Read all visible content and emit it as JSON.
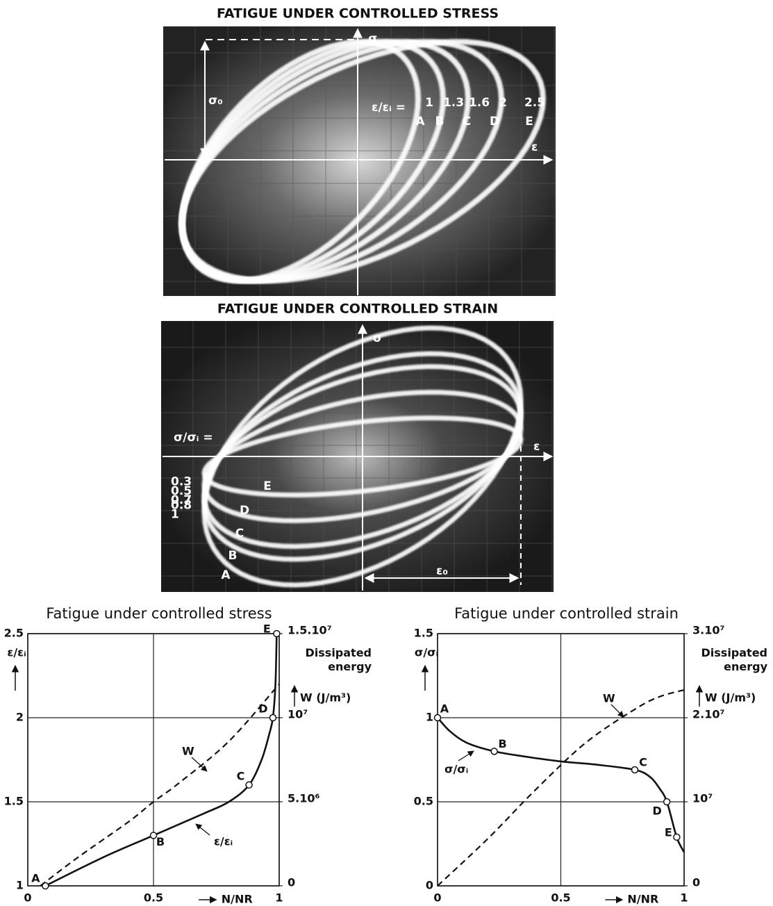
{
  "photos": [
    {
      "title": "FATIGUE UNDER CONTROLLED STRESS",
      "y_label": "σ",
      "x_label": "ε",
      "amplitude_label": "σ₀",
      "ratio_label": "ε/εᵢ =",
      "ratios": [
        1,
        1.3,
        1.6,
        2,
        2.5
      ],
      "loop_labels": [
        "A",
        "B",
        "C",
        "D",
        "E"
      ]
    },
    {
      "title": "FATIGUE UNDER CONTROLLED STRAIN",
      "y_label": "σ",
      "x_label": "ε",
      "amplitude_label": "ε₀",
      "ratio_label": "σ/σᵢ =",
      "ratios": [
        0.3,
        0.5,
        0.7,
        0.8,
        1
      ],
      "loop_labels": [
        "E",
        "D",
        "C",
        "B",
        "A"
      ]
    }
  ],
  "chart_data": [
    {
      "type": "line",
      "title": "Fatigue under controlled stress",
      "xlabel": "N/NR",
      "ylabel": "ε/εᵢ",
      "y2label": "Dissipated energy",
      "y2unit": "W (J/m³)",
      "xlim": [
        0,
        1
      ],
      "xticks": [
        0,
        0.5,
        1
      ],
      "ylim": [
        1,
        2.5
      ],
      "yticks": [
        1,
        1.5,
        2,
        2.5
      ],
      "y2lim": [
        0,
        15000000
      ],
      "y2ticks": [
        0,
        {
          "value": 5000000,
          "label": "5.10⁶"
        },
        {
          "value": 10000000,
          "label": "10⁷"
        },
        {
          "value": 15000000,
          "label": "1.5.10⁷"
        }
      ],
      "grid": true,
      "series": [
        {
          "name": "ε/εᵢ",
          "color": "#111111",
          "style": "solid",
          "x": [
            0.07,
            0.3,
            0.5,
            0.7,
            0.8,
            0.88,
            0.93,
            0.96,
            0.975,
            0.985,
            0.99
          ],
          "values": [
            1,
            1.17,
            1.3,
            1.43,
            1.5,
            1.6,
            1.75,
            1.9,
            2,
            2.2,
            2.5
          ],
          "point_labels": [
            "A",
            null,
            "B",
            null,
            null,
            "C",
            null,
            null,
            "D",
            null,
            "E"
          ]
        },
        {
          "name": "W",
          "color": "#111111",
          "style": "dashed",
          "axis": "y2",
          "x": [
            0.05,
            0.2,
            0.4,
            0.5,
            0.6,
            0.8,
            1
          ],
          "values": [
            0,
            1700000,
            3800000,
            5000000,
            6100000,
            8600000,
            12000000
          ]
        }
      ]
    },
    {
      "type": "line",
      "title": "Fatigue under controlled strain",
      "xlabel": "N/NR",
      "ylabel": "σ/σᵢ",
      "y2label": "Dissipated energy",
      "y2unit": "W (J/m³)",
      "xlim": [
        0,
        1
      ],
      "xticks": [
        0,
        0.5,
        1
      ],
      "ylim": [
        0,
        1.5
      ],
      "yticks": [
        0,
        0.5,
        1,
        1.5
      ],
      "y2lim": [
        0,
        30000000
      ],
      "y2ticks": [
        0,
        {
          "value": 10000000,
          "label": "10⁷"
        },
        {
          "value": 20000000,
          "label": "2.10⁷"
        },
        {
          "value": 30000000,
          "label": "3.10⁷"
        }
      ],
      "grid": true,
      "series": [
        {
          "name": "σ/σᵢ",
          "color": "#111111",
          "style": "solid",
          "x": [
            0,
            0.05,
            0.12,
            0.23,
            0.35,
            0.5,
            0.65,
            0.8,
            0.86,
            0.9,
            0.93,
            0.97,
            1
          ],
          "values": [
            1,
            0.92,
            0.85,
            0.8,
            0.77,
            0.74,
            0.72,
            0.69,
            0.65,
            0.58,
            0.5,
            0.29,
            0.2
          ],
          "point_labels": [
            "A",
            null,
            null,
            "B",
            null,
            null,
            null,
            "C",
            null,
            null,
            "D",
            "E",
            null
          ]
        },
        {
          "name": "W",
          "color": "#111111",
          "style": "dashed",
          "axis": "y2",
          "x": [
            0,
            0.2,
            0.4,
            0.6,
            0.8,
            0.9,
            1
          ],
          "values": [
            0,
            5500000,
            11500000,
            17000000,
            21000000,
            22500000,
            23300000
          ]
        }
      ]
    }
  ]
}
